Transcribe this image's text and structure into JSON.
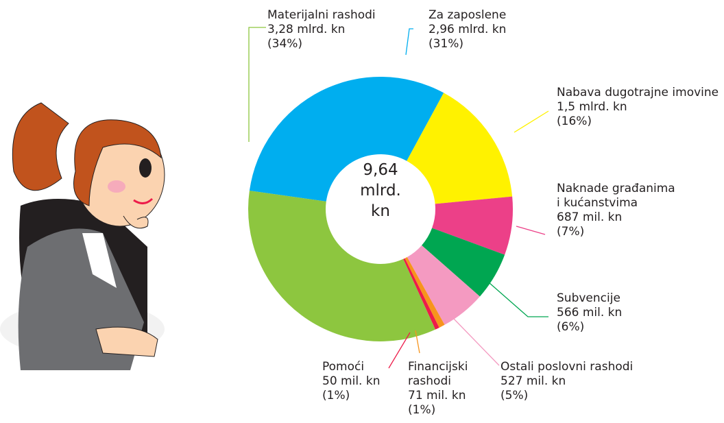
{
  "chart_data": {
    "type": "donut",
    "center_label": [
      "9,64",
      "mlrd.",
      "kn"
    ],
    "series": [
      {
        "name": "Materijalni rashodi",
        "color": "#8dc63f",
        "values": [
          3280
        ],
        "value_labels": [
          "3,28 mlrd. kn"
        ],
        "share_label": "(34%)"
      },
      {
        "name": "Za zaposlene",
        "color": "#00aeef",
        "values": [
          2960
        ],
        "value_labels": [
          "2,96 mlrd. kn"
        ],
        "share_label": "(31%)"
      },
      {
        "name": "Nabava dugotrajne imovine",
        "color": "#fff200",
        "values": [
          1500
        ],
        "value_labels": [
          "1,5 mlrd. kn"
        ],
        "share_label": "(16%)"
      },
      {
        "name": "Naknade građanima i kućanstvima",
        "color": "#ec4088",
        "values": [
          687
        ],
        "value_labels": [
          "687 mil. kn"
        ],
        "share_label": "(7%)"
      },
      {
        "name": "Subvencije",
        "color": "#00a651",
        "values": [
          566
        ],
        "value_labels": [
          "566 mil. kn"
        ],
        "share_label": "(6%)"
      },
      {
        "name": "Ostali poslovni rashodi",
        "color": "#f49ac1",
        "values": [
          527
        ],
        "value_labels": [
          "527 mil. kn"
        ],
        "share_label": "(5%)"
      },
      {
        "name": "Financijski rashodi",
        "color": "#f7941d",
        "values": [
          71
        ],
        "value_labels": [
          "71 mil. kn"
        ],
        "share_label": "(1%)"
      },
      {
        "name": "Pomoći",
        "color": "#ed1c4a",
        "values": [
          50
        ],
        "value_labels": [
          "50 mil. kn"
        ],
        "share_label": "(1%)"
      }
    ]
  }
}
